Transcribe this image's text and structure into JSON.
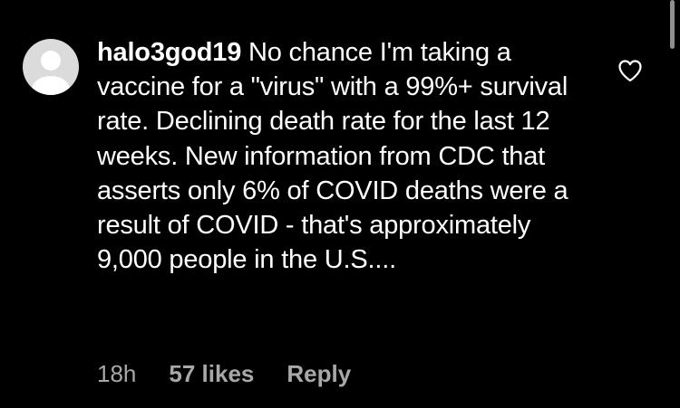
{
  "comment": {
    "username": "halo3god19",
    "text": "No chance I'm taking a vaccine for a \"virus\" with a 99%+ survival rate. Declining death rate for the last 12 weeks. New information from CDC that asserts only 6% of COVID deaths were a result of COVID - that's approximately 9,000 people in the U.S....",
    "timestamp": "18h",
    "likes": "57 likes",
    "reply_label": "Reply"
  },
  "icons": {
    "avatar": "default-user-avatar-icon",
    "like": "heart-outline-icon"
  },
  "colors": {
    "background": "#000000",
    "text": "#ffffff",
    "meta_text": "#a8a8a8",
    "avatar_bg": "#dbdbdb",
    "avatar_fg": "#ffffff",
    "scrollbar": "#8e8e8e"
  }
}
